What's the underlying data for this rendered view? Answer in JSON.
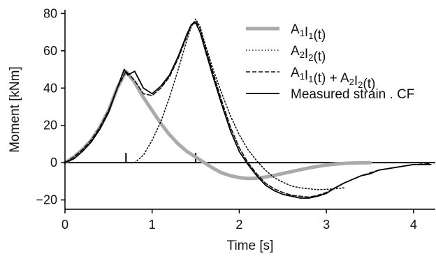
{
  "chart_data": {
    "type": "line",
    "title": "",
    "xlabel": "Time [s]",
    "ylabel": "Moment [kNm]",
    "xlim": [
      0,
      4.25
    ],
    "ylim": [
      -25,
      82
    ],
    "xticks": [
      0,
      1,
      2,
      3,
      4
    ],
    "yticks": [
      -20,
      0,
      20,
      40,
      60,
      80
    ],
    "xtick_labels": [
      "0",
      "1",
      "2",
      "3",
      "4"
    ],
    "ytick_labels": [
      "−20",
      "0",
      "20",
      "40",
      "60",
      "80"
    ],
    "zero_line": 0,
    "grid": false,
    "legend_position": "top-right",
    "markers": [
      0.7,
      1.5
    ],
    "series": [
      {
        "name": "A1I1(t)",
        "legend": {
          "parts": [
            [
              "A",
              ""
            ],
            [
              "1",
              "sub"
            ],
            [
              "I",
              ""
            ],
            [
              "1",
              "sub"
            ],
            [
              "(t)",
              ""
            ]
          ]
        },
        "color": "#aaaaaa",
        "style": "solid-thick",
        "x": [
          0,
          0.1,
          0.2,
          0.3,
          0.4,
          0.5,
          0.6,
          0.7,
          0.8,
          0.9,
          1.0,
          1.1,
          1.2,
          1.3,
          1.4,
          1.5,
          1.6,
          1.7,
          1.8,
          1.9,
          2.0,
          2.1,
          2.2,
          2.3,
          2.4,
          2.5,
          2.6,
          2.7,
          2.8,
          2.9,
          3.0,
          3.1,
          3.2,
          3.3,
          3.4,
          3.5
        ],
        "y": [
          0,
          3,
          7,
          12,
          19,
          28,
          40,
          49,
          43,
          35,
          28,
          21,
          15,
          10,
          6,
          3,
          0,
          -3,
          -5.5,
          -7,
          -8,
          -8.5,
          -8.3,
          -7.7,
          -6.8,
          -5.8,
          -4.8,
          -3.8,
          -2.8,
          -2,
          -1.3,
          -0.8,
          -0.4,
          -0.2,
          -0.1,
          0
        ]
      },
      {
        "name": "A2I2(t)",
        "legend": {
          "parts": [
            [
              "A",
              ""
            ],
            [
              "2",
              "sub"
            ],
            [
              "I",
              ""
            ],
            [
              "2",
              "sub"
            ],
            [
              "(t)",
              ""
            ]
          ]
        },
        "color": "#111111",
        "style": "dotted",
        "x": [
          0.8,
          0.9,
          1.0,
          1.1,
          1.2,
          1.3,
          1.4,
          1.45,
          1.5,
          1.55,
          1.6,
          1.7,
          1.8,
          1.9,
          2.0,
          2.1,
          2.2,
          2.3,
          2.4,
          2.5,
          2.6,
          2.7,
          2.8,
          2.9,
          3.0,
          3.1,
          3.2
        ],
        "y": [
          0,
          4,
          12,
          22,
          35,
          50,
          66,
          73,
          77,
          73,
          65,
          50,
          37,
          25,
          15,
          7,
          1,
          -4,
          -8,
          -10.5,
          -12.5,
          -13.5,
          -14,
          -14.5,
          -14.3,
          -14,
          -13.5
        ]
      },
      {
        "name": "A1I1(t) + A2I2(t)",
        "legend": {
          "parts": [
            [
              "A",
              ""
            ],
            [
              "1",
              "sub"
            ],
            [
              "I",
              ""
            ],
            [
              "1",
              "sub"
            ],
            [
              "(t) + A",
              ""
            ],
            [
              "2",
              "sub"
            ],
            [
              "I",
              ""
            ],
            [
              "2",
              "sub"
            ],
            [
              "(t)",
              ""
            ]
          ]
        },
        "color": "#111111",
        "style": "dashed",
        "x": [
          0,
          0.1,
          0.2,
          0.3,
          0.4,
          0.5,
          0.6,
          0.7,
          0.8,
          0.9,
          1.0,
          1.1,
          1.2,
          1.3,
          1.4,
          1.45,
          1.5,
          1.55,
          1.6,
          1.7,
          1.8,
          1.9,
          2.0,
          2.1,
          2.2,
          2.3,
          2.4,
          2.5,
          2.6,
          2.7,
          2.8,
          2.9,
          3.0,
          3.1,
          3.2,
          3.3,
          3.4,
          3.5,
          3.6,
          3.8,
          4.0,
          4.2
        ],
        "y": [
          0,
          3,
          7,
          12,
          19,
          28,
          40,
          49,
          44,
          37,
          36,
          40,
          46,
          56,
          68,
          74,
          76,
          72,
          64,
          48,
          33,
          19,
          8,
          0,
          -6,
          -11,
          -14,
          -16,
          -17.5,
          -18,
          -18.5,
          -17.5,
          -16,
          -13.5,
          -11,
          -9,
          -7,
          -5.5,
          -4,
          -2.5,
          -1,
          -0.5
        ]
      },
      {
        "name": "Measured strain . CF",
        "legend": {
          "parts": [
            [
              "Measured strain . CF",
              ""
            ]
          ]
        },
        "color": "#000000",
        "style": "solid",
        "x": [
          0,
          0.1,
          0.2,
          0.3,
          0.4,
          0.5,
          0.6,
          0.68,
          0.72,
          0.8,
          0.9,
          1.0,
          1.1,
          1.2,
          1.3,
          1.4,
          1.45,
          1.5,
          1.55,
          1.6,
          1.7,
          1.8,
          1.9,
          2.0,
          2.1,
          2.2,
          2.3,
          2.4,
          2.5,
          2.6,
          2.7,
          2.8,
          2.9,
          3.0,
          3.1,
          3.2,
          3.3,
          3.4,
          3.5,
          3.6,
          3.8,
          4.0,
          4.2
        ],
        "y": [
          0,
          2,
          6,
          11,
          18,
          27,
          40,
          50,
          47,
          49,
          40,
          37,
          41,
          47,
          57,
          69,
          74,
          75,
          70,
          62,
          46,
          31,
          17,
          6,
          -1,
          -7,
          -12,
          -15,
          -17,
          -18,
          -19,
          -19,
          -18,
          -16.5,
          -13.5,
          -11,
          -9,
          -7,
          -6,
          -4,
          -2.5,
          -1,
          -1
        ]
      }
    ]
  }
}
